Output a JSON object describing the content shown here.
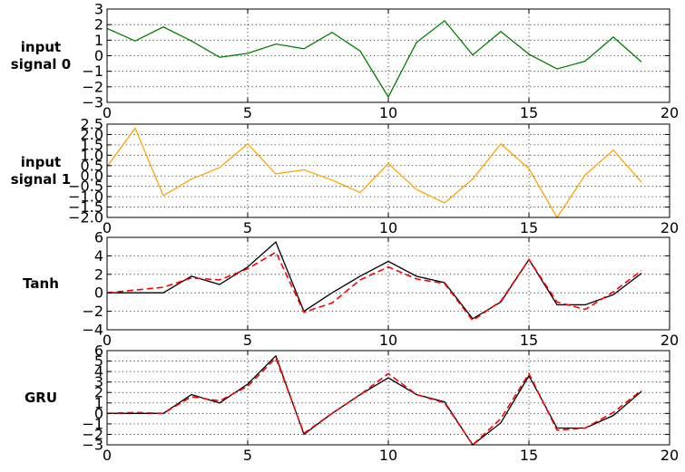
{
  "chart_data": [
    {
      "type": "line",
      "row_label": [
        "input",
        "signal 0"
      ],
      "x": [
        0,
        1,
        2,
        3,
        4,
        5,
        6,
        7,
        8,
        9,
        10,
        11,
        12,
        13,
        14,
        15,
        16,
        17,
        18,
        19
      ],
      "xlim": [
        0,
        20
      ],
      "ylim": [
        -3,
        3
      ],
      "xticks": [
        0,
        5,
        10,
        15,
        20
      ],
      "yticks": [
        -3,
        -2,
        -1,
        0,
        1,
        2,
        3
      ],
      "ytick_labels": [
        "−3",
        "−2",
        "−1",
        "0",
        "1",
        "2",
        "3"
      ],
      "grid": true,
      "series": [
        {
          "color": "#008000",
          "dashed": false,
          "values": [
            1.75,
            0.95,
            1.85,
            0.95,
            -0.1,
            0.15,
            0.75,
            0.45,
            1.5,
            0.3,
            -2.65,
            0.85,
            2.25,
            0.05,
            1.55,
            0.1,
            -0.85,
            -0.35,
            1.2,
            -0.4
          ]
        }
      ]
    },
    {
      "type": "line",
      "row_label": [
        "input",
        "signal 1"
      ],
      "x": [
        0,
        1,
        2,
        3,
        4,
        5,
        6,
        7,
        8,
        9,
        10,
        11,
        12,
        13,
        14,
        15,
        16,
        17,
        18,
        19
      ],
      "xlim": [
        0,
        20
      ],
      "ylim": [
        -2.0,
        2.5
      ],
      "xticks": [
        0,
        5,
        10,
        15,
        20
      ],
      "yticks": [
        -2.0,
        -1.5,
        -1.0,
        -0.5,
        0.0,
        0.5,
        1.0,
        1.5,
        2.0,
        2.5
      ],
      "ytick_labels": [
        "−2.0",
        "−1.5",
        "−1.0",
        "−0.5",
        "0.0",
        "0.5",
        "1.0",
        "1.5",
        "2.0",
        "2.5"
      ],
      "grid": true,
      "series": [
        {
          "color": "#ffa500",
          "dashed": false,
          "values": [
            0.45,
            2.3,
            -0.95,
            -0.15,
            0.4,
            1.55,
            0.1,
            0.3,
            -0.2,
            -0.8,
            0.6,
            -0.65,
            -1.3,
            -0.15,
            1.55,
            0.35,
            -2.0,
            0.05,
            1.25,
            -0.3
          ]
        }
      ]
    },
    {
      "type": "line",
      "row_label": [
        "Tanh"
      ],
      "x": [
        0,
        1,
        2,
        3,
        4,
        5,
        6,
        7,
        8,
        9,
        10,
        11,
        12,
        13,
        14,
        15,
        16,
        17,
        18,
        19
      ],
      "xlim": [
        0,
        20
      ],
      "ylim": [
        -4,
        6
      ],
      "xticks": [
        0,
        5,
        10,
        15,
        20
      ],
      "yticks": [
        -4,
        -2,
        0,
        2,
        4,
        6
      ],
      "ytick_labels": [
        "−4",
        "−2",
        "0",
        "2",
        "4",
        "6"
      ],
      "grid": true,
      "series": [
        {
          "color": "#000000",
          "dashed": false,
          "values": [
            0,
            0,
            0,
            1.8,
            0.9,
            2.8,
            5.5,
            -2.0,
            0,
            1.8,
            3.4,
            1.8,
            1.1,
            -2.8,
            -1.0,
            3.6,
            -1.3,
            -1.3,
            -0.2,
            2.1
          ]
        },
        {
          "color": "#ff0000",
          "dashed": true,
          "values": [
            0,
            0.3,
            0.6,
            1.6,
            1.4,
            2.6,
            4.4,
            -2.1,
            -1.1,
            1.4,
            2.8,
            1.5,
            1.0,
            -3.0,
            -0.9,
            3.6,
            -1.0,
            -1.8,
            0.1,
            2.4
          ]
        }
      ]
    },
    {
      "type": "line",
      "row_label": [
        "GRU"
      ],
      "x": [
        0,
        1,
        2,
        3,
        4,
        5,
        6,
        7,
        8,
        9,
        10,
        11,
        12,
        13,
        14,
        15,
        16,
        17,
        18,
        19
      ],
      "xlim": [
        0,
        20
      ],
      "ylim": [
        -3,
        6
      ],
      "xticks": [
        0,
        5,
        10,
        15,
        20
      ],
      "yticks": [
        -3,
        -2,
        -1,
        0,
        1,
        2,
        3,
        4,
        5,
        6
      ],
      "ytick_labels": [
        "−3",
        "−2",
        "−1",
        "0",
        "1",
        "2",
        "3",
        "4",
        "5",
        "6"
      ],
      "grid": true,
      "series": [
        {
          "color": "#000000",
          "dashed": false,
          "values": [
            0,
            0,
            0,
            1.8,
            1.0,
            2.8,
            5.5,
            -2.0,
            0,
            1.8,
            3.4,
            1.8,
            1.1,
            -3.0,
            -0.9,
            3.6,
            -1.4,
            -1.4,
            -0.2,
            2.1
          ]
        },
        {
          "color": "#ff0000",
          "dashed": true,
          "values": [
            0,
            0.1,
            0,
            1.6,
            1.2,
            2.6,
            5.3,
            -1.9,
            0,
            1.8,
            3.8,
            1.8,
            1.0,
            -3.0,
            -0.5,
            3.8,
            -1.6,
            -1.4,
            0.1,
            2.2
          ]
        }
      ]
    }
  ]
}
